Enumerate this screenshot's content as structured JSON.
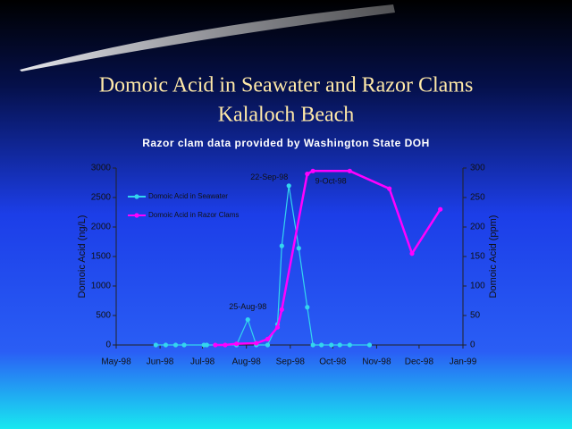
{
  "chart_data": {
    "type": "line",
    "title": "Domoic Acid in Seawater and Razor Clams",
    "subtitle": "Kalaloch Beach",
    "caption": "Razor clam data provided by Washington State DOH",
    "ylabel": "Domoic Acid (ng/L)",
    "y2label": "Domoic Acid (ppm)",
    "xlim": [
      "1998-05-01",
      "1999-01-01"
    ],
    "xticks": [
      {
        "value": "1998-05-01",
        "label": "May-98"
      },
      {
        "value": "1998-06-01",
        "label": "Jun-98"
      },
      {
        "value": "1998-07-01",
        "label": "Jul-98"
      },
      {
        "value": "1998-08-01",
        "label": "Aug-98"
      },
      {
        "value": "1998-09-01",
        "label": "Sep-98"
      },
      {
        "value": "1998-10-01",
        "label": "Oct-98"
      },
      {
        "value": "1998-11-01",
        "label": "Nov-98"
      },
      {
        "value": "1998-12-01",
        "label": "Dec-98"
      },
      {
        "value": "1999-01-01",
        "label": "Jan-99"
      }
    ],
    "ylim": [
      0,
      3000
    ],
    "yticks": [
      0,
      500,
      1000,
      1500,
      2000,
      2500,
      3000
    ],
    "y2lim": [
      0,
      300
    ],
    "y2ticks": [
      0,
      50,
      100,
      150,
      200,
      250,
      300
    ],
    "series": [
      {
        "name": "Domoic Acid in Seawater",
        "color": "#33d6ee",
        "x": [
          "1998-05-29",
          "1998-06-05",
          "1998-06-12",
          "1998-06-18",
          "1998-07-02",
          "1998-07-04",
          "1998-07-25",
          "1998-08-02",
          "1998-08-08",
          "1998-08-16",
          "1998-08-23",
          "1998-08-26",
          "1998-08-31",
          "1998-09-07",
          "1998-09-13",
          "1998-09-17",
          "1998-09-23",
          "1998-09-30",
          "1998-10-06",
          "1998-10-13",
          "1998-10-27"
        ],
        "values": [
          0,
          0,
          0,
          0,
          0,
          0,
          0,
          430,
          0,
          0,
          350,
          1680,
          2700,
          1640,
          640,
          0,
          0,
          0,
          0,
          0,
          0
        ]
      },
      {
        "name": "Domoic Acid in Razor Clams",
        "color": "#ff00ff",
        "axis": "y2",
        "x": [
          "1998-07-10",
          "1998-07-17",
          "1998-07-25",
          "1998-08-08",
          "1998-08-16",
          "1998-08-23",
          "1998-08-26",
          "1998-09-13",
          "1998-09-17",
          "1998-10-13",
          "1998-11-10",
          "1998-11-26",
          "1998-12-16"
        ],
        "values": [
          0,
          0,
          2,
          3,
          10,
          30,
          60,
          290,
          295,
          295,
          265,
          155,
          230
        ]
      }
    ],
    "annotations": [
      "25-Aug-98",
      "22-Sep-98",
      "9-Oct-98"
    ],
    "legend": "upper left"
  }
}
